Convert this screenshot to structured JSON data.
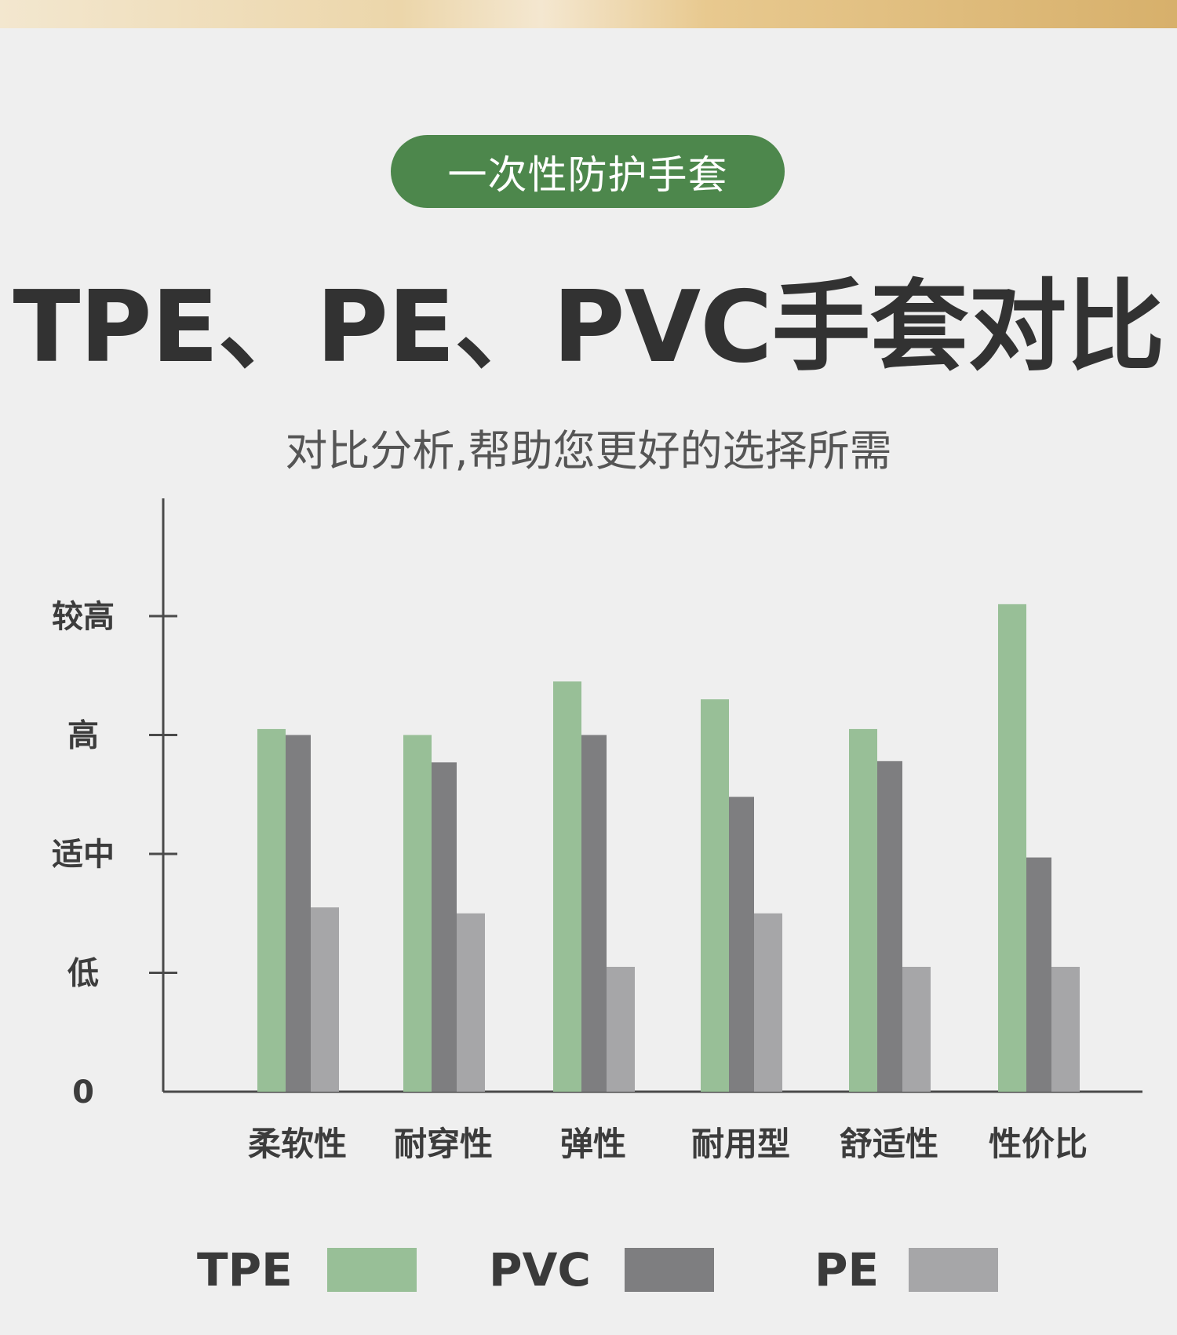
{
  "header": {
    "badge": "一次性防护手套",
    "title": "TPE、PE、PVC手套对比",
    "subtitle": "对比分析,帮助您更好的选择所需"
  },
  "chart_data": {
    "type": "bar",
    "title": "",
    "xlabel": "",
    "ylabel": "",
    "categories": [
      "柔软性",
      "耐穿性",
      "弹性",
      "耐用型",
      "舒适性",
      "性价比"
    ],
    "y_tick_labels": [
      "0",
      "低",
      "适中",
      "高",
      "较高"
    ],
    "y_tick_values": [
      0,
      1,
      2,
      3,
      4
    ],
    "ylim": [
      0,
      4.95
    ],
    "grid": false,
    "legend_position": "bottom",
    "series": [
      {
        "name": "TPE",
        "color": "#98bf97",
        "values": [
          3.05,
          3.0,
          3.45,
          3.3,
          3.05,
          4.1
        ]
      },
      {
        "name": "PVC",
        "color": "#7e7e80",
        "values": [
          3.0,
          2.77,
          3.0,
          2.48,
          2.78,
          1.97
        ]
      },
      {
        "name": "PE",
        "color": "#a6a6a8",
        "values": [
          1.55,
          1.5,
          1.05,
          1.5,
          1.05,
          1.05
        ]
      }
    ]
  },
  "legend": {
    "items": [
      {
        "label": "TPE",
        "color": "#98bf97"
      },
      {
        "label": "PVC",
        "color": "#7e7e80"
      },
      {
        "label": "PE",
        "color": "#a6a6a8"
      }
    ]
  }
}
